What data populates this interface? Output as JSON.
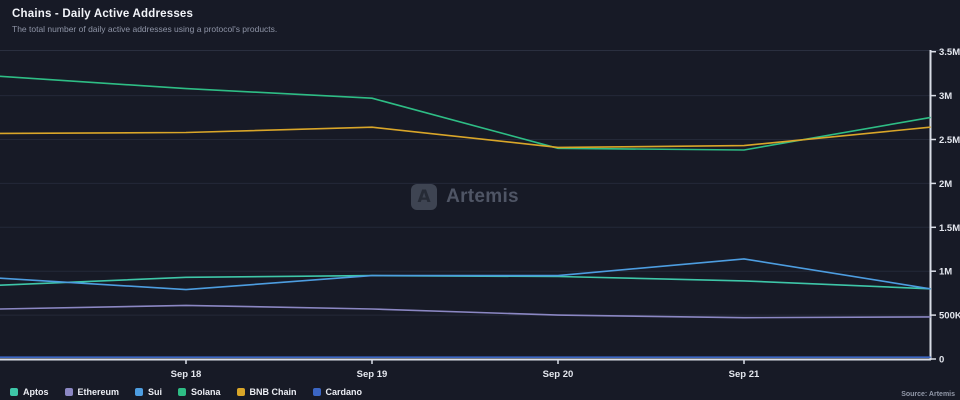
{
  "header": {
    "title": "Chains - Daily Active Addresses",
    "subtitle": "The total number of daily active addresses using a protocol's products."
  },
  "watermark": {
    "logo_glyph": "A",
    "brand": "Artemis"
  },
  "source_note": "Source: Artemis",
  "colors": {
    "background": "#171a26",
    "grid": "#242938",
    "axis": "#d9dde6",
    "axis_text": "#e4e7ee",
    "watermark_text": "#4f5565"
  },
  "chart_data": {
    "type": "line",
    "title": "Chains - Daily Active Addresses",
    "x_tick_labels": [
      "Sep 18",
      "Sep 19",
      "Sep 20",
      "Sep 21"
    ],
    "x_tick_day_index": [
      1,
      2,
      3,
      4
    ],
    "x_day_index": [
      0,
      1,
      2,
      3,
      4,
      5
    ],
    "y_axis": {
      "side": "right",
      "tick_labels": [
        "0",
        "500K",
        "1M",
        "1.5M",
        "2M",
        "2.5M",
        "3M",
        "3.5M"
      ],
      "tick_values_m": [
        0,
        0.5,
        1,
        1.5,
        2,
        2.5,
        3,
        3.5
      ],
      "ylim_m": [
        0,
        3.5
      ]
    },
    "grid": "horizontal-only",
    "legend_position": "bottom-left",
    "series": [
      {
        "name": "Aptos",
        "color": "#3ec6a8",
        "values_m": [
          0.84,
          0.93,
          0.95,
          0.94,
          0.89,
          0.8
        ]
      },
      {
        "name": "Ethereum",
        "color": "#8b87c3",
        "values_m": [
          0.57,
          0.61,
          0.57,
          0.5,
          0.47,
          0.48
        ]
      },
      {
        "name": "Sui",
        "color": "#4d9de0",
        "values_m": [
          0.92,
          0.79,
          0.95,
          0.95,
          1.14,
          0.8
        ]
      },
      {
        "name": "Solana",
        "color": "#2ebd85",
        "values_m": [
          3.22,
          3.08,
          2.97,
          2.4,
          2.38,
          2.75
        ]
      },
      {
        "name": "BNB Chain",
        "color": "#d9a629",
        "values_m": [
          2.57,
          2.58,
          2.64,
          2.41,
          2.43,
          2.64
        ]
      },
      {
        "name": "Cardano",
        "color": "#3b66c4",
        "values_m": [
          0.02,
          0.02,
          0.02,
          0.02,
          0.02,
          0.02
        ]
      }
    ]
  }
}
